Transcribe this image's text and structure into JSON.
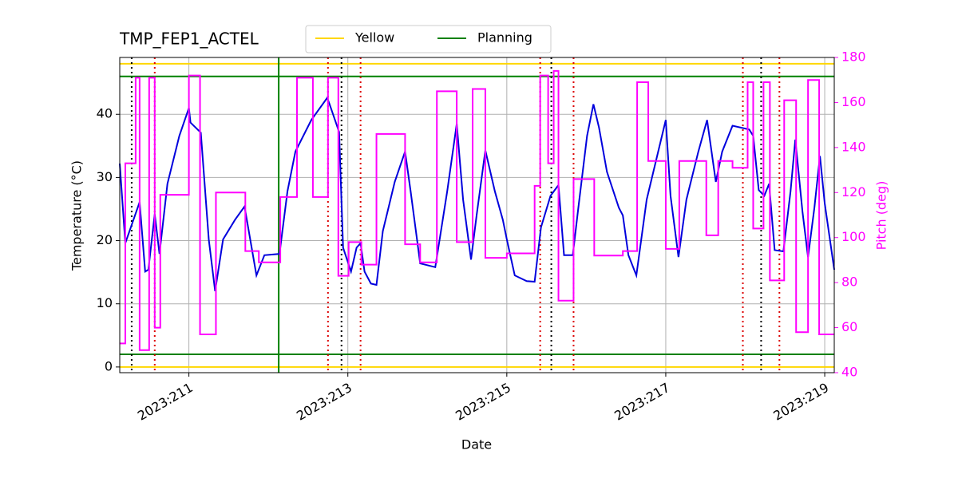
{
  "chart_data": {
    "type": "line",
    "title": "TMP_FEP1_ACTEL",
    "xlabel": "Date",
    "ylabel": "Temperature (°C)",
    "y2label": "Pitch (deg)",
    "xlim": [
      210.13,
      219.12
    ],
    "ylim": [
      -0.9,
      49
    ],
    "y2lim": [
      40,
      180
    ],
    "xticks": [
      {
        "value": 211,
        "label": "2023:211"
      },
      {
        "value": 213,
        "label": "2023:213"
      },
      {
        "value": 215,
        "label": "2023:215"
      },
      {
        "value": 217,
        "label": "2023:217"
      },
      {
        "value": 219,
        "label": "2023:219"
      }
    ],
    "yticks": [
      0,
      10,
      20,
      30,
      40
    ],
    "y2ticks": [
      40,
      60,
      80,
      100,
      120,
      140,
      160,
      180
    ],
    "y2color": "#ff00ff",
    "grid": true,
    "legend": "upper center",
    "series": [
      {
        "color": "#0000dd",
        "x": [
          210.13,
          210.2,
          210.38,
          210.45,
          210.49,
          210.57,
          210.63,
          210.73,
          210.88,
          211.0,
          211.02,
          211.15,
          211.25,
          211.33,
          211.43,
          211.58,
          211.7,
          211.85,
          211.95,
          212.14,
          212.24,
          212.34,
          212.54,
          212.74,
          212.77,
          212.89,
          212.94,
          213.04,
          213.11,
          213.16,
          213.21,
          213.29,
          213.36,
          213.44,
          213.59,
          213.72,
          213.79,
          213.91,
          214.1,
          214.25,
          214.37,
          214.45,
          214.55,
          214.62,
          214.73,
          214.85,
          214.95,
          215.0,
          215.1,
          215.25,
          215.35,
          215.43,
          215.55,
          215.65,
          215.72,
          215.83,
          215.9,
          216.01,
          216.09,
          216.16,
          216.26,
          216.41,
          216.46,
          216.53,
          216.63,
          216.76,
          216.88,
          217.0,
          217.06,
          217.16,
          217.26,
          217.41,
          217.52,
          217.63,
          217.71,
          217.84,
          218.05,
          218.1,
          218.17,
          218.24,
          218.3,
          218.37,
          218.48,
          218.57,
          218.63,
          218.72,
          218.79,
          218.87,
          218.94,
          219.0,
          219.12
        ],
        "values": [
          32.2,
          19.6,
          26.1,
          15.1,
          15.4,
          24.2,
          17.9,
          29.0,
          36.6,
          41.0,
          38.7,
          37.1,
          20.2,
          12.0,
          20.2,
          23.3,
          25.4,
          14.5,
          17.7,
          17.9,
          27.8,
          34.1,
          39.1,
          42.6,
          41.6,
          37.2,
          18.9,
          15.1,
          18.9,
          19.6,
          15.1,
          13.2,
          13.0,
          21.5,
          29.3,
          34.1,
          27.8,
          16.4,
          15.8,
          27.8,
          38.5,
          26.5,
          17.0,
          24.0,
          34.3,
          27.8,
          23.3,
          20.2,
          14.5,
          13.6,
          13.5,
          22.1,
          27.1,
          28.8,
          17.7,
          17.7,
          25.2,
          36.6,
          41.6,
          37.9,
          30.9,
          25.2,
          24.0,
          17.7,
          14.5,
          26.5,
          32.8,
          39.1,
          27.1,
          17.4,
          26.5,
          34.1,
          39.1,
          29.3,
          34.1,
          38.2,
          37.6,
          36.6,
          28.0,
          27.1,
          29.0,
          18.5,
          18.3,
          27.8,
          36.0,
          24.6,
          17.4,
          25.2,
          33.4,
          25.9,
          15.4
        ]
      },
      {
        "color": "#ff00ff",
        "axis": "y2",
        "step": "post",
        "x": [
          210.13,
          210.2,
          210.33,
          210.38,
          210.5,
          210.57,
          210.64,
          211.0,
          211.14,
          211.34,
          211.71,
          211.88,
          212.15,
          212.36,
          212.56,
          212.75,
          212.88,
          213.01,
          213.17,
          213.36,
          213.72,
          213.91,
          214.12,
          214.37,
          214.57,
          214.73,
          215.0,
          215.35,
          215.42,
          215.52,
          215.59,
          215.65,
          215.84,
          216.1,
          216.46,
          216.64,
          216.78,
          217.0,
          217.17,
          217.51,
          217.66,
          217.84,
          218.03,
          218.1,
          218.23,
          218.31,
          218.49,
          218.64,
          218.79,
          218.93,
          219.12
        ],
        "values": [
          53,
          133,
          171,
          50,
          171,
          60,
          119,
          172,
          57,
          120,
          94,
          89,
          118,
          171,
          118,
          171,
          83,
          98,
          88,
          146,
          97,
          89,
          165,
          98,
          166,
          91,
          93,
          123,
          172,
          133,
          174,
          72,
          126,
          92,
          94,
          169,
          134,
          95,
          134,
          101,
          134,
          131,
          169,
          104,
          169,
          81,
          161,
          58,
          170,
          57,
          57
        ]
      }
    ],
    "hlines": [
      {
        "name": "Yellow",
        "color": "#ffd700",
        "values": [
          0,
          48
        ]
      },
      {
        "name": "Planning",
        "color": "#008000",
        "values": [
          2,
          46
        ]
      }
    ],
    "vlines": [
      {
        "color": "#008000",
        "style": "solid",
        "values": [
          212.13
        ]
      },
      {
        "color": "#000000",
        "style": "dotted",
        "values": [
          210.28,
          212.92,
          215.56,
          218.2
        ]
      },
      {
        "color": "#dd0000",
        "style": "dotted",
        "values": [
          210.57,
          212.75,
          213.16,
          215.42,
          215.84,
          217.97,
          218.43
        ]
      }
    ]
  }
}
